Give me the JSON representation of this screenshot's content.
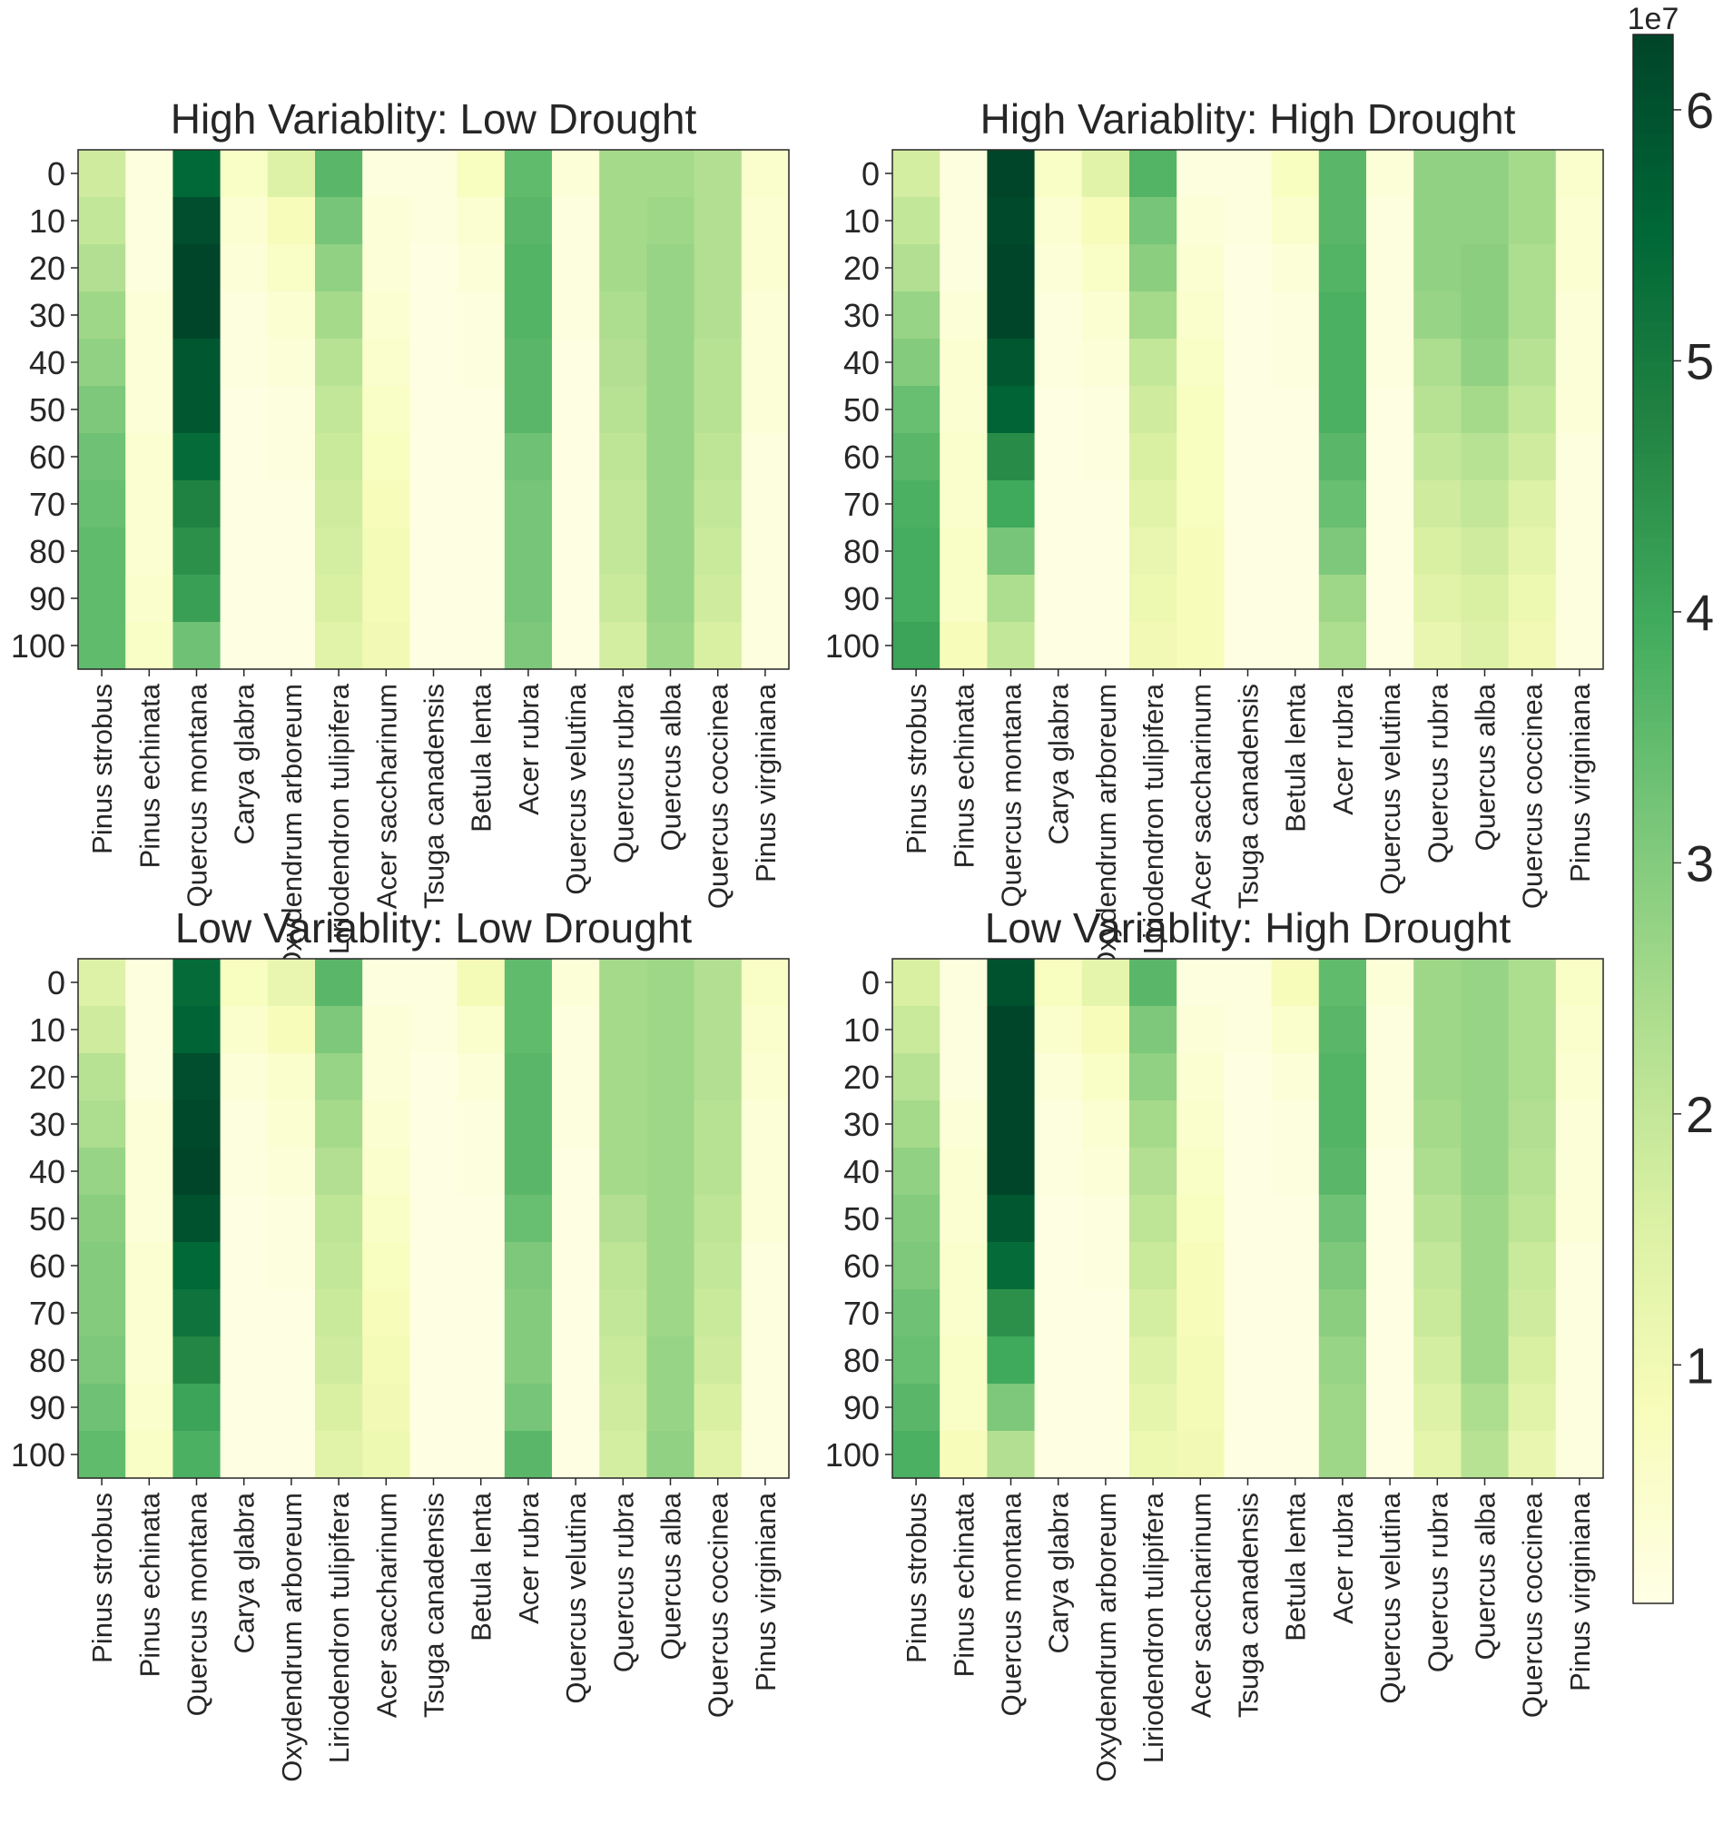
{
  "chart_data": {
    "type": "heatmap",
    "layout": "2x2 grid of heatmaps with shared colorbar",
    "colormap": "YlGn",
    "shared_y_ticks": [
      "0",
      "10",
      "20",
      "30",
      "40",
      "50",
      "60",
      "70",
      "80",
      "90",
      "100"
    ],
    "shared_x_categories": [
      "Pinus strobus",
      "Pinus echinata",
      "Quercus montana",
      "Carya glabra",
      "Oxydendrum arboreum",
      "Liriodendron tulipifera",
      "Acer saccharinum",
      "Tsuga canadensis",
      "Betula lenta",
      "Acer rubra",
      "Quercus velutina",
      "Quercus rubra",
      "Quercus alba",
      "Quercus coccinea",
      "Pinus virginiana"
    ],
    "colorbar": {
      "min": 0.05,
      "max": 6.3,
      "ticks": [
        1,
        2,
        3,
        4,
        5,
        6
      ],
      "tick_labels": [
        "1",
        "2",
        "3",
        "4",
        "5",
        "6"
      ],
      "multiplier_label": "1e7"
    },
    "panels": [
      {
        "title": "High Variablity: Low Drought",
        "values": [
          [
            1.8,
            0.2,
            5.5,
            0.6,
            1.5,
            3.6,
            0.2,
            0.2,
            0.7,
            3.5,
            0.3,
            2.5,
            2.5,
            2.3,
            0.5
          ],
          [
            2.0,
            0.2,
            6.1,
            0.4,
            0.8,
            3.2,
            0.3,
            0.2,
            0.4,
            3.6,
            0.2,
            2.5,
            2.6,
            2.3,
            0.4
          ],
          [
            2.3,
            0.2,
            6.3,
            0.3,
            0.6,
            2.8,
            0.3,
            0.1,
            0.3,
            3.7,
            0.2,
            2.5,
            2.7,
            2.3,
            0.4
          ],
          [
            2.6,
            0.3,
            6.3,
            0.2,
            0.4,
            2.5,
            0.4,
            0.1,
            0.2,
            3.7,
            0.2,
            2.4,
            2.7,
            2.3,
            0.3
          ],
          [
            2.8,
            0.3,
            5.9,
            0.2,
            0.3,
            2.2,
            0.5,
            0.1,
            0.2,
            3.6,
            0.1,
            2.3,
            2.7,
            2.2,
            0.3
          ],
          [
            3.1,
            0.3,
            5.9,
            0.1,
            0.2,
            2.0,
            0.6,
            0.1,
            0.1,
            3.6,
            0.1,
            2.2,
            2.7,
            2.2,
            0.3
          ],
          [
            3.3,
            0.4,
            5.4,
            0.1,
            0.2,
            1.9,
            0.7,
            0.1,
            0.1,
            3.3,
            0.1,
            2.1,
            2.7,
            2.1,
            0.2
          ],
          [
            3.4,
            0.4,
            4.8,
            0.1,
            0.1,
            1.8,
            0.8,
            0.1,
            0.1,
            3.2,
            0.1,
            2.0,
            2.7,
            2.0,
            0.2
          ],
          [
            3.5,
            0.4,
            4.5,
            0.1,
            0.1,
            1.7,
            0.9,
            0.1,
            0.1,
            3.2,
            0.1,
            2.0,
            2.7,
            1.9,
            0.2
          ],
          [
            3.5,
            0.5,
            4.2,
            0.1,
            0.1,
            1.6,
            0.9,
            0.1,
            0.1,
            3.2,
            0.1,
            1.9,
            2.7,
            1.8,
            0.2
          ],
          [
            3.5,
            0.6,
            3.3,
            0.1,
            0.1,
            1.4,
            1.0,
            0.1,
            0.1,
            3.1,
            0.1,
            1.7,
            2.6,
            1.6,
            0.2
          ]
        ]
      },
      {
        "title": "High Variablity: High Drought",
        "values": [
          [
            1.7,
            0.2,
            6.3,
            0.6,
            1.4,
            3.7,
            0.2,
            0.2,
            0.7,
            3.6,
            0.3,
            2.8,
            2.8,
            2.5,
            0.5
          ],
          [
            2.0,
            0.2,
            6.2,
            0.4,
            0.8,
            3.2,
            0.3,
            0.2,
            0.5,
            3.6,
            0.2,
            2.8,
            2.8,
            2.5,
            0.4
          ],
          [
            2.3,
            0.2,
            6.3,
            0.3,
            0.6,
            2.9,
            0.4,
            0.1,
            0.3,
            3.7,
            0.2,
            2.8,
            2.9,
            2.4,
            0.4
          ],
          [
            2.7,
            0.3,
            6.3,
            0.2,
            0.4,
            2.5,
            0.5,
            0.1,
            0.2,
            3.8,
            0.2,
            2.7,
            2.9,
            2.4,
            0.3
          ],
          [
            3.0,
            0.4,
            5.9,
            0.2,
            0.3,
            2.0,
            0.6,
            0.1,
            0.2,
            3.8,
            0.2,
            2.4,
            2.8,
            2.2,
            0.3
          ],
          [
            3.4,
            0.4,
            5.6,
            0.1,
            0.2,
            1.8,
            0.7,
            0.1,
            0.1,
            3.8,
            0.1,
            2.2,
            2.5,
            2.0,
            0.3
          ],
          [
            3.6,
            0.5,
            4.6,
            0.1,
            0.2,
            1.6,
            0.7,
            0.1,
            0.1,
            3.6,
            0.1,
            2.0,
            2.2,
            1.8,
            0.2
          ],
          [
            3.8,
            0.5,
            4.0,
            0.1,
            0.1,
            1.4,
            0.7,
            0.1,
            0.1,
            3.4,
            0.1,
            1.8,
            2.0,
            1.5,
            0.2
          ],
          [
            3.9,
            0.6,
            3.2,
            0.1,
            0.1,
            1.2,
            0.8,
            0.1,
            0.1,
            3.1,
            0.1,
            1.6,
            1.8,
            1.3,
            0.2
          ],
          [
            3.9,
            0.6,
            2.4,
            0.1,
            0.1,
            1.1,
            0.8,
            0.1,
            0.1,
            2.6,
            0.1,
            1.4,
            1.6,
            1.1,
            0.2
          ],
          [
            4.1,
            0.8,
            2.0,
            0.1,
            0.1,
            1.0,
            0.8,
            0.1,
            0.1,
            2.4,
            0.1,
            1.2,
            1.5,
            1.0,
            0.2
          ]
        ]
      },
      {
        "title": "Low Variablity: Low Drought",
        "values": [
          [
            1.5,
            0.2,
            5.4,
            0.7,
            1.2,
            3.6,
            0.2,
            0.2,
            0.9,
            3.5,
            0.3,
            2.5,
            2.6,
            2.3,
            0.6
          ],
          [
            1.8,
            0.2,
            5.6,
            0.5,
            0.8,
            3.1,
            0.3,
            0.2,
            0.5,
            3.5,
            0.2,
            2.5,
            2.6,
            2.3,
            0.5
          ],
          [
            2.2,
            0.2,
            6.1,
            0.3,
            0.5,
            2.7,
            0.3,
            0.1,
            0.3,
            3.6,
            0.2,
            2.5,
            2.6,
            2.3,
            0.4
          ],
          [
            2.4,
            0.3,
            6.2,
            0.2,
            0.4,
            2.5,
            0.4,
            0.1,
            0.2,
            3.6,
            0.2,
            2.5,
            2.6,
            2.2,
            0.3
          ],
          [
            2.7,
            0.3,
            6.3,
            0.2,
            0.3,
            2.3,
            0.5,
            0.1,
            0.2,
            3.6,
            0.1,
            2.5,
            2.6,
            2.2,
            0.3
          ],
          [
            2.9,
            0.3,
            6.0,
            0.1,
            0.2,
            2.1,
            0.6,
            0.1,
            0.1,
            3.4,
            0.1,
            2.3,
            2.6,
            2.1,
            0.3
          ],
          [
            3.0,
            0.4,
            5.5,
            0.1,
            0.2,
            2.0,
            0.7,
            0.1,
            0.1,
            3.1,
            0.1,
            2.1,
            2.6,
            2.0,
            0.2
          ],
          [
            3.0,
            0.4,
            5.2,
            0.1,
            0.1,
            1.9,
            0.8,
            0.1,
            0.1,
            3.0,
            0.1,
            2.0,
            2.6,
            1.9,
            0.2
          ],
          [
            3.1,
            0.4,
            4.7,
            0.1,
            0.1,
            1.8,
            0.9,
            0.1,
            0.1,
            3.0,
            0.1,
            1.9,
            2.7,
            1.8,
            0.2
          ],
          [
            3.3,
            0.5,
            4.1,
            0.1,
            0.1,
            1.6,
            1.0,
            0.1,
            0.1,
            3.2,
            0.1,
            1.8,
            2.7,
            1.6,
            0.2
          ],
          [
            3.5,
            0.6,
            3.8,
            0.1,
            0.1,
            1.4,
            1.1,
            0.1,
            0.1,
            3.6,
            0.1,
            1.7,
            2.8,
            1.4,
            0.2
          ]
        ]
      },
      {
        "title": "Low Variablity: High Drought",
        "values": [
          [
            1.6,
            0.2,
            6.0,
            0.7,
            1.3,
            3.6,
            0.2,
            0.2,
            0.8,
            3.5,
            0.3,
            2.6,
            2.7,
            2.4,
            0.6
          ],
          [
            1.9,
            0.2,
            6.3,
            0.5,
            0.8,
            3.1,
            0.3,
            0.2,
            0.5,
            3.6,
            0.2,
            2.6,
            2.7,
            2.4,
            0.5
          ],
          [
            2.2,
            0.2,
            6.3,
            0.3,
            0.6,
            2.8,
            0.4,
            0.1,
            0.3,
            3.7,
            0.2,
            2.6,
            2.7,
            2.4,
            0.4
          ],
          [
            2.5,
            0.3,
            6.3,
            0.2,
            0.4,
            2.5,
            0.5,
            0.1,
            0.2,
            3.7,
            0.2,
            2.5,
            2.7,
            2.3,
            0.3
          ],
          [
            2.8,
            0.4,
            6.3,
            0.2,
            0.3,
            2.3,
            0.6,
            0.1,
            0.2,
            3.6,
            0.1,
            2.4,
            2.7,
            2.2,
            0.3
          ],
          [
            3.0,
            0.4,
            5.9,
            0.1,
            0.2,
            2.1,
            0.7,
            0.1,
            0.1,
            3.3,
            0.1,
            2.2,
            2.6,
            2.1,
            0.3
          ],
          [
            3.1,
            0.5,
            5.4,
            0.1,
            0.2,
            1.9,
            0.8,
            0.1,
            0.1,
            3.1,
            0.1,
            2.0,
            2.6,
            1.9,
            0.2
          ],
          [
            3.3,
            0.5,
            4.5,
            0.1,
            0.1,
            1.7,
            0.8,
            0.1,
            0.1,
            2.9,
            0.1,
            1.9,
            2.6,
            1.8,
            0.2
          ],
          [
            3.4,
            0.6,
            4.0,
            0.1,
            0.1,
            1.5,
            0.9,
            0.1,
            0.1,
            2.7,
            0.1,
            1.7,
            2.6,
            1.6,
            0.2
          ],
          [
            3.6,
            0.6,
            3.1,
            0.1,
            0.1,
            1.3,
            0.9,
            0.1,
            0.1,
            2.6,
            0.1,
            1.5,
            2.4,
            1.4,
            0.2
          ],
          [
            3.8,
            0.8,
            2.3,
            0.1,
            0.1,
            1.1,
            1.0,
            0.1,
            0.1,
            2.6,
            0.1,
            1.3,
            2.2,
            1.2,
            0.2
          ]
        ]
      }
    ]
  }
}
